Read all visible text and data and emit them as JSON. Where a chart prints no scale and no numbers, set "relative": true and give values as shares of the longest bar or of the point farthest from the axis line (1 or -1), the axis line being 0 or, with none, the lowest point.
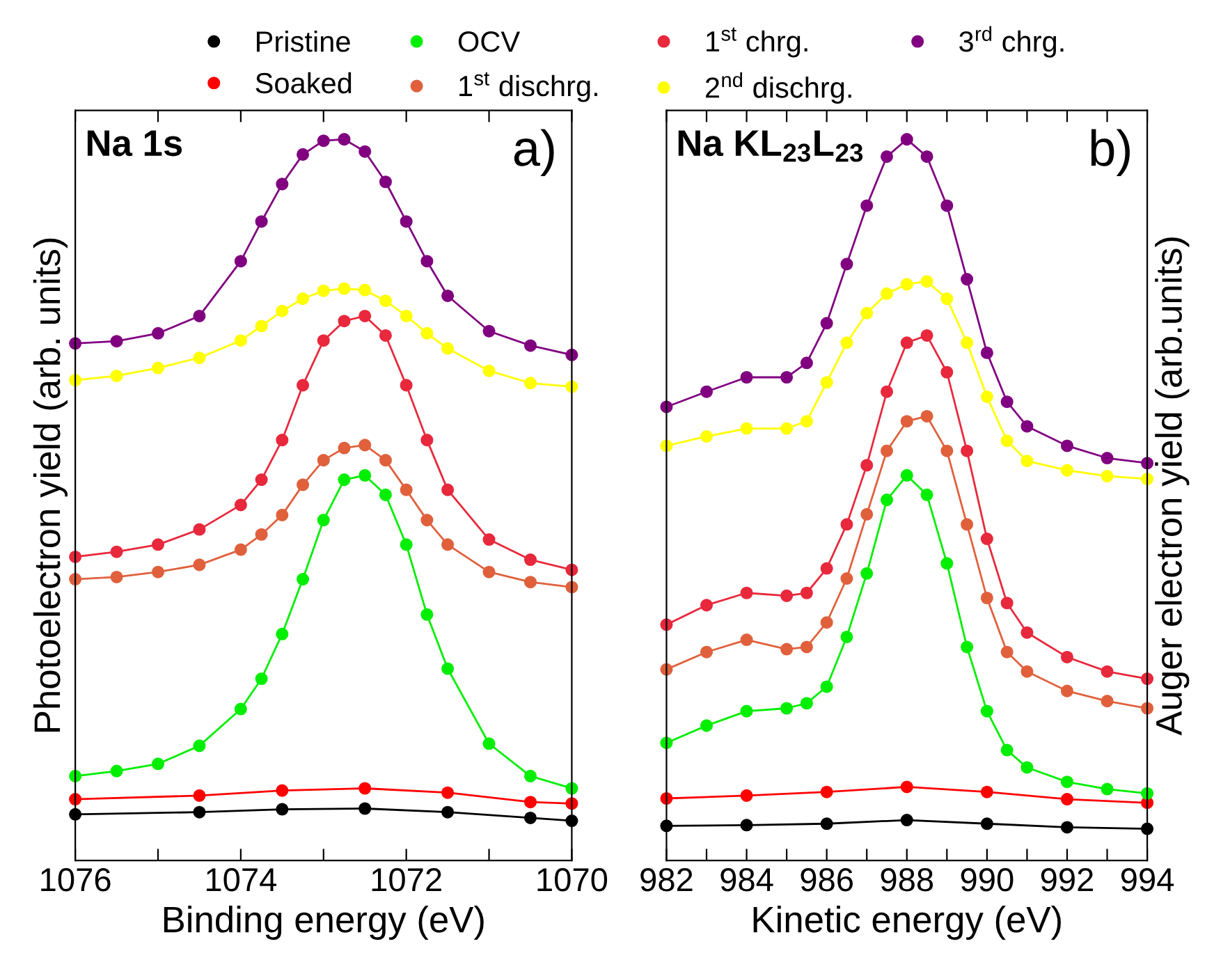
{
  "chart_data": [
    {
      "type": "line",
      "relative": true,
      "xlabel": "Binding energy (eV)",
      "ylabel": "Photoelectron yield (arb. units)",
      "annotations": [
        "Na 1s",
        "a)"
      ],
      "xlim": [
        1076,
        1070
      ],
      "xticks": [
        1076,
        {
          "value": 1075,
          "label": null
        },
        1074,
        {
          "value": 1073,
          "label": null
        },
        1072,
        {
          "value": 1071,
          "label": null
        },
        1070
      ],
      "marker": "circle",
      "legend": "top",
      "series": [
        {
          "name": "Pristine",
          "color": "#000000",
          "x": [
            1076,
            1074.5,
            1073.5,
            1072.5,
            1071.5,
            1070.5,
            1070
          ],
          "values": [
            0.064,
            0.067,
            0.071,
            0.072,
            0.067,
            0.059,
            0.055
          ]
        },
        {
          "name": "Soaked",
          "color": "#ff0000",
          "x": [
            1076,
            1074.5,
            1073.5,
            1072.5,
            1071.5,
            1070.5,
            1070
          ],
          "values": [
            0.085,
            0.09,
            0.097,
            0.1,
            0.094,
            0.081,
            0.079
          ]
        },
        {
          "name": "OCV",
          "color": "#00ee00",
          "x": [
            1076,
            1075.5,
            1075,
            1074.5,
            1074,
            1073.75,
            1073.5,
            1073.25,
            1073,
            1072.75,
            1072.5,
            1072.25,
            1072,
            1071.75,
            1071.5,
            1071,
            1070.5,
            1070
          ],
          "values": [
            0.117,
            0.124,
            0.134,
            0.159,
            0.21,
            0.252,
            0.314,
            0.39,
            0.472,
            0.528,
            0.534,
            0.507,
            0.438,
            0.341,
            0.266,
            0.162,
            0.117,
            0.1
          ]
        },
        {
          "name": "1$^{st}$ dischrg.",
          "color": "#e0603c",
          "x": [
            1076,
            1075.5,
            1075,
            1074.5,
            1074,
            1073.75,
            1073.5,
            1073.25,
            1073,
            1072.75,
            1072.5,
            1072.25,
            1072,
            1071.75,
            1071.5,
            1071,
            1070.5,
            1070
          ],
          "values": [
            0.39,
            0.393,
            0.4,
            0.41,
            0.431,
            0.452,
            0.479,
            0.521,
            0.555,
            0.572,
            0.576,
            0.555,
            0.514,
            0.472,
            0.438,
            0.4,
            0.386,
            0.379
          ]
        },
        {
          "name": "1$^{st}$ chrg.",
          "color": "#e8283c",
          "x": [
            1076,
            1075.5,
            1075,
            1074.5,
            1074,
            1073.75,
            1073.5,
            1073.25,
            1073,
            1072.75,
            1072.5,
            1072.25,
            1072,
            1071.75,
            1071.5,
            1071,
            1070.5,
            1070
          ],
          "values": [
            0.421,
            0.428,
            0.438,
            0.459,
            0.493,
            0.528,
            0.583,
            0.659,
            0.721,
            0.748,
            0.755,
            0.728,
            0.659,
            0.583,
            0.514,
            0.445,
            0.417,
            0.403
          ]
        },
        {
          "name": "2$^{nd}$ dischrg.",
          "color": "#ffff00",
          "x": [
            1076,
            1075.5,
            1075,
            1074.5,
            1074,
            1073.75,
            1073.5,
            1073.25,
            1073,
            1072.75,
            1072.5,
            1072.25,
            1072,
            1071.75,
            1071.5,
            1071,
            1070.5,
            1070
          ],
          "values": [
            0.666,
            0.672,
            0.683,
            0.697,
            0.721,
            0.741,
            0.762,
            0.779,
            0.79,
            0.793,
            0.791,
            0.776,
            0.755,
            0.731,
            0.71,
            0.679,
            0.662,
            0.657
          ]
        },
        {
          "name": "3$^{rd}$ chrg.",
          "color": "#800080",
          "x": [
            1076,
            1075.5,
            1075,
            1074.5,
            1074,
            1073.75,
            1073.5,
            1073.25,
            1073,
            1072.75,
            1072.5,
            1072.25,
            1072,
            1071.75,
            1071.5,
            1071,
            1070.5,
            1070
          ],
          "values": [
            0.717,
            0.72,
            0.731,
            0.755,
            0.831,
            0.886,
            0.938,
            0.979,
            0.998,
            1.0,
            0.983,
            0.941,
            0.886,
            0.831,
            0.783,
            0.734,
            0.714,
            0.701
          ]
        }
      ]
    },
    {
      "type": "line",
      "relative": true,
      "xlabel": "Kinetic energy (eV)",
      "y2label": "Auger electron yield (arb.units)",
      "annotations": [
        "Na KL$_{23}$L$_{23}$",
        "b)"
      ],
      "xlim": [
        982,
        994
      ],
      "xticks": [
        982,
        {
          "value": 983,
          "label": null
        },
        984,
        {
          "value": 985,
          "label": null
        },
        986,
        {
          "value": 987,
          "label": null
        },
        988,
        {
          "value": 989,
          "label": null
        },
        990,
        {
          "value": 991,
          "label": null
        },
        992,
        {
          "value": 993,
          "label": null
        },
        994
      ],
      "marker": "circle",
      "series": [
        {
          "color": "#000000",
          "x": [
            982,
            984,
            986,
            988,
            990,
            992,
            994
          ],
          "values": [
            0.048,
            0.049,
            0.051,
            0.056,
            0.051,
            0.046,
            0.044
          ]
        },
        {
          "color": "#ff0000",
          "x": [
            982,
            984,
            986,
            988,
            990,
            992,
            994
          ],
          "values": [
            0.086,
            0.09,
            0.095,
            0.102,
            0.095,
            0.085,
            0.08
          ]
        },
        {
          "color": "#00ee00",
          "x": [
            982,
            983,
            984,
            985,
            985.5,
            986,
            986.5,
            987,
            987.5,
            988,
            988.5,
            989,
            989.5,
            990,
            990.5,
            991,
            992,
            993,
            994
          ],
          "values": [
            0.163,
            0.187,
            0.207,
            0.211,
            0.218,
            0.241,
            0.31,
            0.398,
            0.5,
            0.534,
            0.507,
            0.412,
            0.296,
            0.207,
            0.153,
            0.129,
            0.109,
            0.099,
            0.093
          ]
        },
        {
          "color": "#e0603c",
          "x": [
            982,
            983,
            984,
            985,
            985.5,
            986,
            986.5,
            987,
            987.5,
            988,
            988.5,
            989,
            989.5,
            990,
            990.5,
            991,
            992,
            993,
            994
          ],
          "values": [
            0.265,
            0.289,
            0.306,
            0.293,
            0.296,
            0.33,
            0.391,
            0.48,
            0.568,
            0.609,
            0.616,
            0.568,
            0.466,
            0.364,
            0.289,
            0.262,
            0.235,
            0.221,
            0.211
          ]
        },
        {
          "color": "#e8283c",
          "x": [
            982,
            983,
            984,
            985,
            985.5,
            986,
            986.5,
            987,
            987.5,
            988,
            988.5,
            989,
            989.5,
            990,
            990.5,
            991,
            992,
            993,
            994
          ],
          "values": [
            0.327,
            0.354,
            0.371,
            0.367,
            0.371,
            0.405,
            0.466,
            0.548,
            0.65,
            0.718,
            0.728,
            0.677,
            0.568,
            0.446,
            0.357,
            0.316,
            0.282,
            0.262,
            0.252
          ]
        },
        {
          "color": "#ffff00",
          "x": [
            982,
            983,
            984,
            985,
            985.5,
            986,
            986.5,
            987,
            987.5,
            988,
            988.5,
            989,
            989.5,
            990,
            990.5,
            991,
            992,
            993,
            994
          ],
          "values": [
            0.575,
            0.588,
            0.599,
            0.599,
            0.609,
            0.663,
            0.718,
            0.759,
            0.786,
            0.799,
            0.803,
            0.779,
            0.718,
            0.643,
            0.582,
            0.554,
            0.541,
            0.533,
            0.529
          ]
        },
        {
          "color": "#800080",
          "x": [
            982,
            983,
            984,
            985,
            985.5,
            986,
            986.5,
            987,
            987.5,
            988,
            988.5,
            989,
            989.5,
            990,
            990.5,
            991,
            992,
            993,
            994
          ],
          "values": [
            0.629,
            0.65,
            0.67,
            0.67,
            0.69,
            0.745,
            0.827,
            0.908,
            0.976,
            1.0,
            0.976,
            0.908,
            0.806,
            0.704,
            0.636,
            0.602,
            0.575,
            0.558,
            0.551
          ]
        }
      ]
    }
  ]
}
